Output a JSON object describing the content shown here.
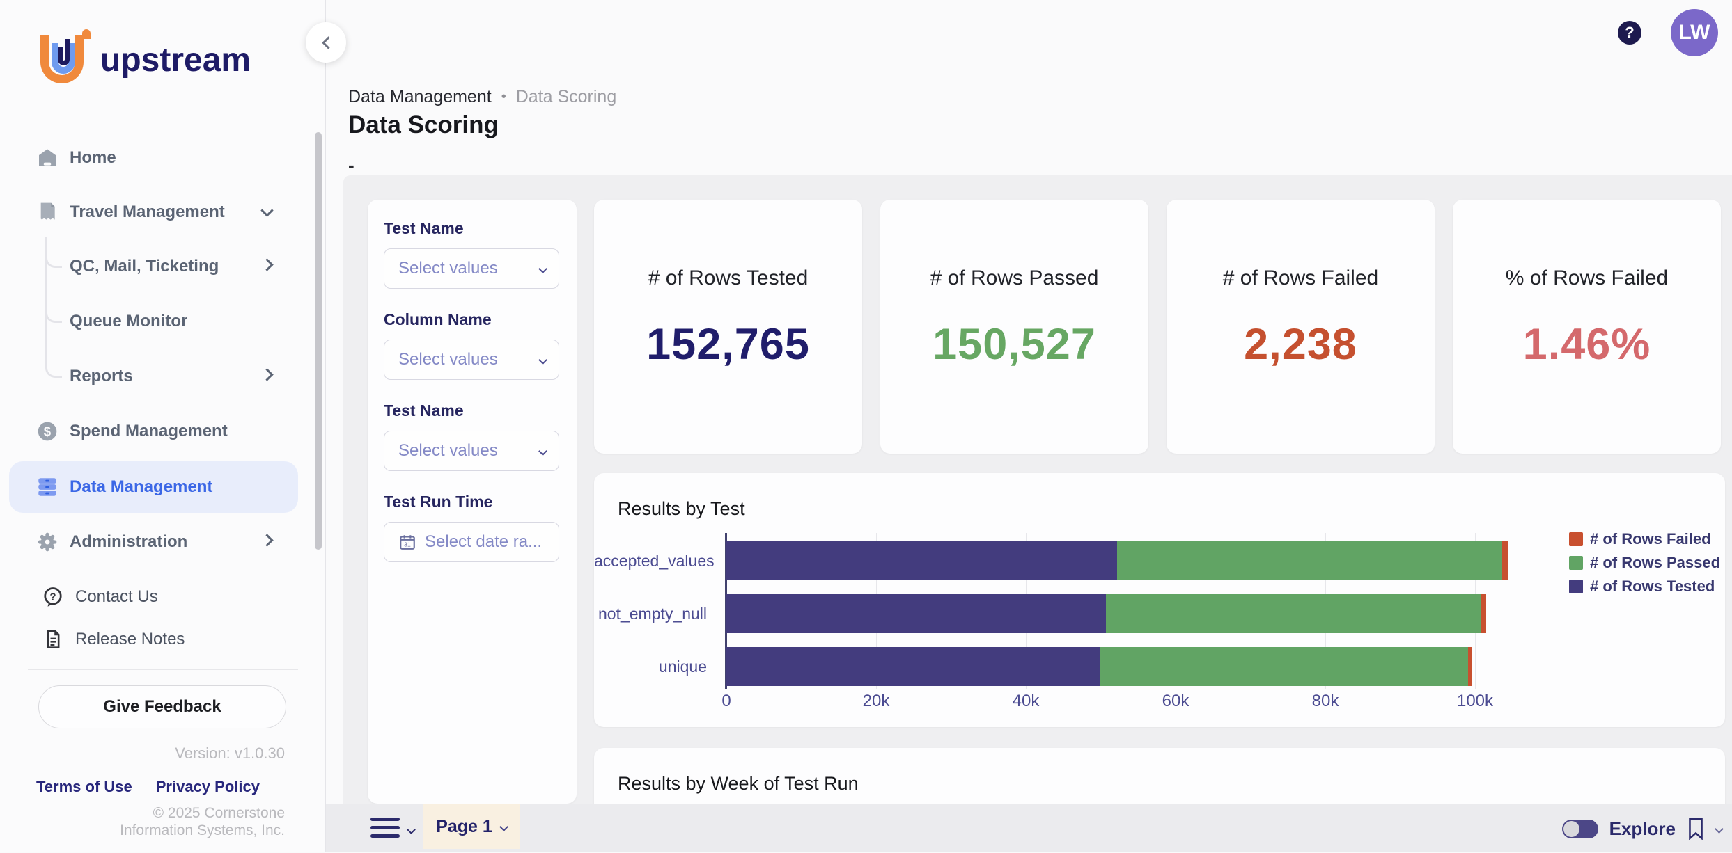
{
  "app": {
    "brand": "upstream",
    "version": "Version: v1.0.30",
    "copyright": "© 2025 Cornerstone Information Systems, Inc."
  },
  "topbar": {
    "help": "?",
    "avatar": "LW"
  },
  "sidebar": {
    "items": {
      "home": "Home",
      "travel": "Travel Management",
      "qc": "QC, Mail, Ticketing",
      "queue": "Queue Monitor",
      "reports": "Reports",
      "spend": "Spend Management",
      "data": "Data Management",
      "admin": "Administration",
      "contact": "Contact Us",
      "release": "Release Notes"
    },
    "feedback": "Give Feedback",
    "terms": "Terms of Use",
    "privacy": "Privacy Policy"
  },
  "header": {
    "breadcrumb_parent": "Data Management",
    "breadcrumb_sep": "•",
    "breadcrumb_current": "Data Scoring",
    "title": "Data Scoring",
    "subtitle": "-"
  },
  "filters": {
    "f1_label": "Test Name",
    "f1_placeholder": "Select values",
    "f2_label": "Column Name",
    "f2_placeholder": "Select values",
    "f3_label": "Test Name",
    "f3_placeholder": "Select values",
    "f4_label": "Test Run Time",
    "f4_placeholder": "Select date ra..."
  },
  "kpis": [
    {
      "label": "# of Rows Tested",
      "value": "152,765",
      "color": "#201d6b"
    },
    {
      "label": "# of Rows Passed",
      "value": "150,527",
      "color": "#67a763"
    },
    {
      "label": "# of Rows Failed",
      "value": "2,238",
      "color": "#c5502f"
    },
    {
      "label": "% of Rows Failed",
      "value": "1.46%",
      "color": "#d4696c"
    }
  ],
  "chart_data": {
    "type": "bar",
    "orientation": "horizontal",
    "stacked": true,
    "title": "Results by Test",
    "categories": [
      "accepted_values",
      "not_empty_null",
      "unique"
    ],
    "series": [
      {
        "name": "# of Rows Tested",
        "color": "#433c7e",
        "values": [
          52200,
          50700,
          49900
        ]
      },
      {
        "name": "# of Rows Passed",
        "color": "#61a464",
        "values": [
          51400,
          50000,
          49150
        ]
      },
      {
        "name": "# of Rows Failed",
        "color": "#c8502f",
        "values": [
          900,
          800,
          538
        ]
      }
    ],
    "legend": [
      {
        "label": "# of Rows Failed",
        "color": "#c8502f"
      },
      {
        "label": "# of Rows Passed",
        "color": "#61a464"
      },
      {
        "label": "# of Rows Tested",
        "color": "#433c7e"
      }
    ],
    "x_ticks": [
      "0",
      "20k",
      "40k",
      "60k",
      "80k",
      "100k"
    ],
    "xlim": [
      0,
      110000
    ],
    "grid": true,
    "legend_position": "top-right"
  },
  "sections": {
    "week_title": "Results by Week of Test Run"
  },
  "bottombar": {
    "page": "Page 1",
    "explore": "Explore"
  }
}
